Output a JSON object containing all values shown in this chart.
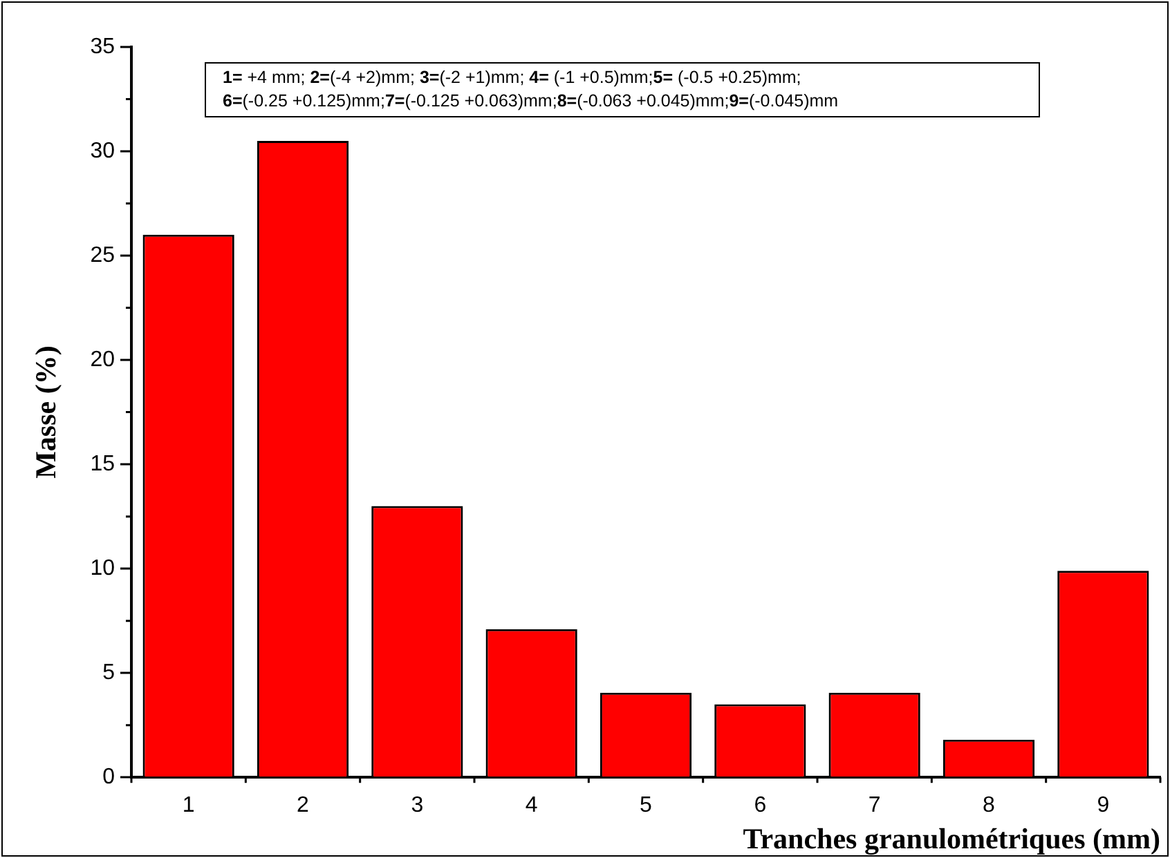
{
  "chart_data": {
    "type": "bar",
    "xlabel": "Tranches granulométriques (mm)",
    "ylabel": "Masse (%)",
    "categories": [
      "1",
      "2",
      "3",
      "4",
      "5",
      "6",
      "7",
      "8",
      "9"
    ],
    "values": [
      26,
      30.5,
      13,
      7.1,
      4.05,
      3.5,
      4.05,
      1.8,
      9.9
    ],
    "color": "#ff0000",
    "ylim": [
      0,
      35
    ],
    "yticks": [
      0,
      5,
      10,
      15,
      20,
      25,
      30,
      35
    ],
    "grid": false,
    "legend": false,
    "annotations": [
      "1= +4 mm; 2=(-4 +2)mm; 3=(-2 +1)mm; 4= (-1 +0.5)mm;5= (-0.5 +0.25)mm;",
      "6=(-0.25 +0.125)mm;7=(-0.125 +0.063)mm;8=(-0.063 +0.045)mm;9=(-0.045)mm"
    ]
  }
}
